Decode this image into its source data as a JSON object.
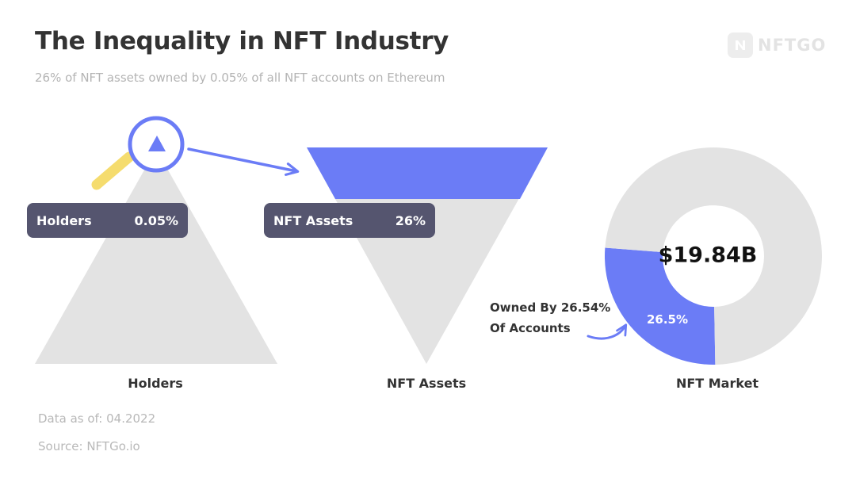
{
  "header": {
    "title": "The Inequality in NFT Industry",
    "subtitle": "26% of NFT assets owned by 0.05% of all NFT accounts on Ethereum"
  },
  "logo": {
    "text": "NFTGO",
    "icon": "nftgo-logo-icon"
  },
  "colors": {
    "accent": "#6b7cf6",
    "shape_gray": "#e3e3e3",
    "pill_bg": "#55556f",
    "magnifier_handle": "#f5dc6e",
    "text_dark": "#333333",
    "text_muted": "#b4b4b4"
  },
  "chart_data": [
    {
      "type": "triangle",
      "label": "Holders",
      "pill": {
        "label": "Holders",
        "value": "0.05%"
      },
      "highlight_share": 0.0005,
      "icon": "magnifier-icon"
    },
    {
      "type": "inverted-triangle",
      "label": "NFT Assets",
      "pill": {
        "label": "NFT Assets",
        "value": "26%"
      },
      "highlight_share": 0.26
    },
    {
      "type": "donut",
      "label": "NFT Market",
      "center_value": "$19.84B",
      "slices": [
        {
          "label": "26.5%",
          "value": 26.5,
          "color": "#6b7cf6"
        },
        {
          "label": "",
          "value": 73.5,
          "color": "#e3e3e3"
        }
      ],
      "annotation": [
        "Owned By 26.54%",
        "Of Accounts"
      ]
    }
  ],
  "footer": {
    "data_as_of": "Data as of: 04.2022",
    "source": "Source: NFTGo.io"
  }
}
